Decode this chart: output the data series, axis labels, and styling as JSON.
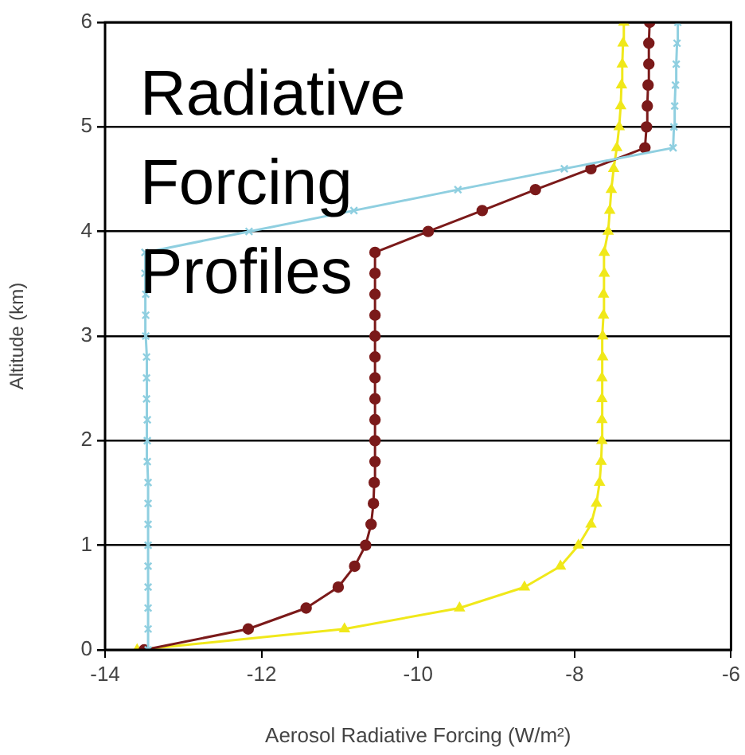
{
  "chart_data": {
    "type": "line",
    "orientation": "horizontal",
    "title": "Radiative Forcing Profiles",
    "xlabel": "Aerosol Radiative Forcing (W/m²)",
    "ylabel": "Altitude (km)",
    "xlim": [
      -14,
      -6
    ],
    "xticks": [
      -14,
      -12,
      -10,
      -8,
      -6
    ],
    "ylim": [
      0,
      6
    ],
    "yticks": [
      0,
      1,
      2,
      3,
      4,
      5,
      6
    ],
    "grid": "y",
    "legend": false,
    "line_style": "solid",
    "series": [
      {
        "color": "#8fcfe0",
        "marker": "cross",
        "values": [
          -13.45,
          -13.45,
          -13.45,
          -13.45,
          -13.45,
          -13.45,
          -13.45,
          -13.45,
          -13.45,
          -13.46,
          -13.46,
          -13.46,
          -13.47,
          -13.47,
          -13.47,
          -13.48,
          -13.48,
          -13.48,
          -13.49,
          -13.49,
          -12.16,
          -10.82,
          -9.49,
          -8.13,
          -6.74,
          -6.73,
          -6.72,
          -6.71,
          -6.7,
          -6.69,
          -6.68
        ],
        "x": [
          0,
          0.2,
          0.4,
          0.6,
          0.8,
          1,
          1.2,
          1.4,
          1.6,
          1.8,
          2,
          2.2,
          2.4,
          2.6,
          2.8,
          3,
          3.2,
          3.4,
          3.6,
          3.8,
          4,
          4.2,
          4.4,
          4.6,
          4.8,
          5,
          5.2,
          5.4,
          5.6,
          5.8,
          6
        ]
      },
      {
        "color": "#7b1a1a",
        "marker": "circle",
        "values": [
          -13.5,
          -12.17,
          -11.43,
          -11.02,
          -10.81,
          -10.67,
          -10.6,
          -10.57,
          -10.56,
          -10.55,
          -10.55,
          -10.55,
          -10.55,
          -10.55,
          -10.55,
          -10.55,
          -10.55,
          -10.55,
          -10.55,
          -10.55,
          -9.87,
          -9.18,
          -8.5,
          -7.79,
          -7.1,
          -7.08,
          -7.07,
          -7.06,
          -7.05,
          -7.05,
          -7.04
        ],
        "x": [
          0,
          0.2,
          0.4,
          0.6,
          0.8,
          1,
          1.2,
          1.4,
          1.6,
          1.8,
          2,
          2.2,
          2.4,
          2.6,
          2.8,
          3,
          3.2,
          3.4,
          3.6,
          3.8,
          4,
          4.2,
          4.4,
          4.6,
          4.8,
          5,
          5.2,
          5.4,
          5.6,
          5.8,
          6
        ]
      },
      {
        "color": "#f0e81a",
        "marker": "triangle",
        "values": [
          -13.59,
          -10.94,
          -9.47,
          -8.64,
          -8.18,
          -7.95,
          -7.79,
          -7.72,
          -7.68,
          -7.66,
          -7.65,
          -7.65,
          -7.65,
          -7.65,
          -7.64,
          -7.64,
          -7.63,
          -7.63,
          -7.62,
          -7.62,
          -7.57,
          -7.55,
          -7.53,
          -7.5,
          -7.46,
          -7.43,
          -7.41,
          -7.4,
          -7.39,
          -7.38,
          -7.37
        ],
        "x": [
          0,
          0.2,
          0.4,
          0.6,
          0.8,
          1,
          1.2,
          1.4,
          1.6,
          1.8,
          2,
          2.2,
          2.4,
          2.6,
          2.8,
          3,
          3.2,
          3.4,
          3.6,
          3.8,
          4,
          4.2,
          4.4,
          4.6,
          4.8,
          5,
          5.2,
          5.4,
          5.6,
          5.8,
          6
        ]
      }
    ]
  }
}
